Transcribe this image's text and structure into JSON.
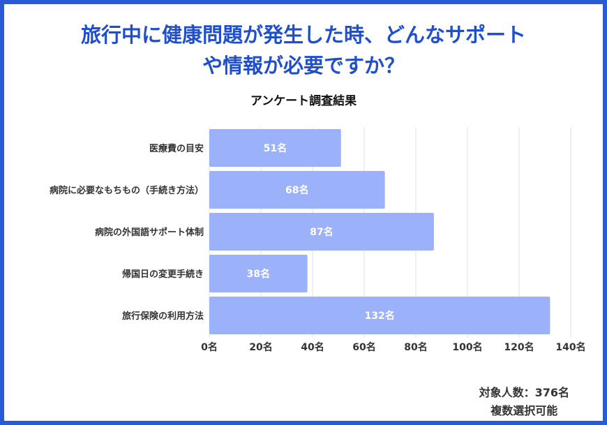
{
  "title_line1": "旅行中に健康問題が発生した時、どんなサポート",
  "title_line2": "や情報が必要ですか？",
  "subtitle": "アンケート調査結果",
  "footnote": {
    "respondents": "対象人数：376名",
    "multiple": "複数選択可能"
  },
  "colors": {
    "bar": "#9bb1fa",
    "title": "#1f4fc9",
    "frame": "#2a5bd7"
  },
  "chart_data": {
    "type": "bar",
    "orientation": "horizontal",
    "categories": [
      "医療費の目安",
      "病院に必要なもちもの（手続き方法）",
      "病院の外国語サポート体制",
      "帰国日の変更手続き",
      "旅行保険の利用方法"
    ],
    "values": [
      51,
      68,
      87,
      38,
      132
    ],
    "value_labels": [
      "51名",
      "68名",
      "87名",
      "38名",
      "132名"
    ],
    "xlim": [
      0,
      140
    ],
    "xticks": [
      0,
      20,
      40,
      60,
      80,
      100,
      120,
      140
    ],
    "xtick_labels": [
      "0名",
      "20名",
      "40名",
      "60名",
      "80名",
      "100名",
      "120名",
      "140名"
    ],
    "grid": true
  }
}
